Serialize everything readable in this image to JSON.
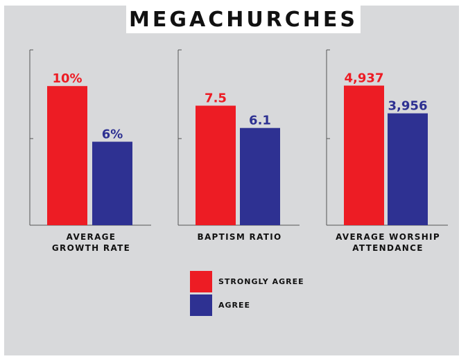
{
  "title": "MEGACHURCHES",
  "colors": {
    "strongly_agree": "#ed1c24",
    "agree": "#2e3192"
  },
  "legend": [
    {
      "label": "STRONGLY AGREE",
      "color": "#ed1c24"
    },
    {
      "label": "AGREE",
      "color": "#2e3192"
    }
  ],
  "chart_data": [
    {
      "type": "bar",
      "xlabel": [
        "AVERAGE",
        "GROWTH RATE"
      ],
      "categories": [
        "STRONGLY AGREE",
        "AGREE"
      ],
      "values": [
        10,
        6
      ],
      "value_labels": [
        "10%",
        "6%"
      ],
      "ylim": [
        0,
        12.6
      ],
      "grid": false
    },
    {
      "type": "bar",
      "xlabel": [
        "BAPTISM RATIO"
      ],
      "categories": [
        "STRONGLY AGREE",
        "AGREE"
      ],
      "values": [
        7.5,
        6.1
      ],
      "value_labels": [
        "7.5",
        "6.1"
      ],
      "ylim": [
        0,
        11
      ],
      "grid": false
    },
    {
      "type": "bar",
      "xlabel": [
        "AVERAGE WORSHIP",
        "ATTENDANCE"
      ],
      "categories": [
        "STRONGLY AGREE",
        "AGREE"
      ],
      "values": [
        4937,
        3956
      ],
      "value_labels": [
        "4,937",
        "3,956"
      ],
      "ylim": [
        0,
        6200
      ],
      "grid": false
    }
  ]
}
